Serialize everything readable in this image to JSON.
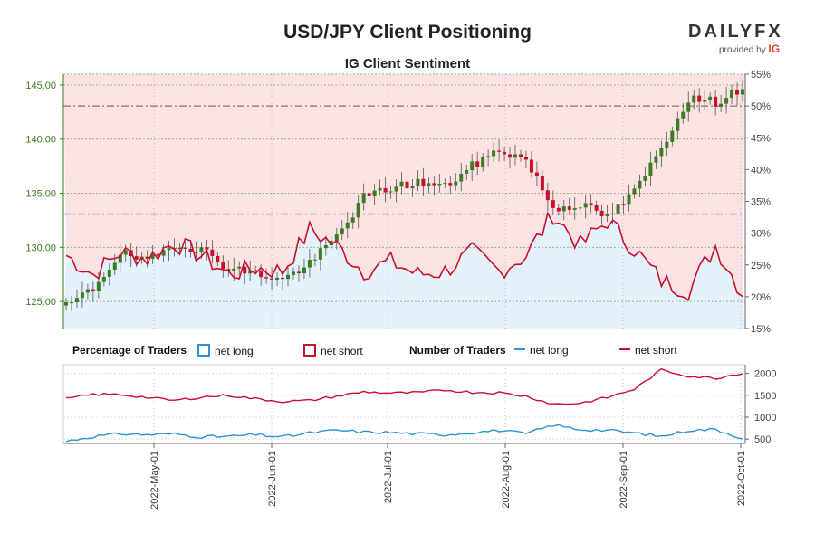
{
  "title": "USD/JPY Client Positioning",
  "subtitle": "IG Client Sentiment",
  "brand": {
    "name": "DAILYFX",
    "tagline": "provided by",
    "partner": "IG"
  },
  "colors": {
    "price_axis": "#3a7d1e",
    "long": "#2a93d5",
    "short": "#c8102e",
    "short_fill": "#fbe3e3",
    "long_fill": "#e3f1fb",
    "bull": "#3a7d1e",
    "bear": "#c8102e"
  },
  "legend": {
    "pct_title": "Percentage of Traders",
    "pct_long": "net long",
    "pct_short": "net short",
    "num_title": "Number of Traders",
    "num_long": "net long",
    "num_short": "net short"
  },
  "chart_data": [
    {
      "type": "candlestick+line",
      "name": "price-and-percentage",
      "x_labels": [
        "2022-May-01",
        "2022-Jun-01",
        "2022-Jul-01",
        "2022-Aug-01",
        "2022-Sep-01",
        "2022-Oct-01"
      ],
      "price_axis": {
        "label": "USD/JPY",
        "ylim": [
          122.5,
          146
        ],
        "ticks": [
          "125.00",
          "130.00",
          "135.00",
          "140.00",
          "145.00"
        ]
      },
      "pct_axis": {
        "ylim": [
          15,
          55
        ],
        "ticks": [
          "15%",
          "20%",
          "25%",
          "30%",
          "35%",
          "40%",
          "45%",
          "50%",
          "55%"
        ]
      },
      "reference_lines_pct": [
        50,
        33
      ],
      "price_path": [
        124.5,
        126.2,
        129.5,
        128.6,
        130.3,
        129.8,
        128.1,
        127.6,
        127.0,
        128.5,
        131.0,
        134.6,
        135.5,
        136.0,
        135.6,
        137.5,
        139.0,
        138.1,
        133.6,
        134.0,
        132.8,
        135.1,
        139.2,
        143.8,
        143.4,
        144.8
      ],
      "net_long_pct_path": [
        26.5,
        23.5,
        27.0,
        26.0,
        28.5,
        26.5,
        23.5,
        24.5,
        24.0,
        30.5,
        28.0,
        24.0,
        25.5,
        23.5,
        24.0,
        27.0,
        24.0,
        26.5,
        33.0,
        28.0,
        32.0,
        27.5,
        22.5,
        21.0,
        28.0,
        20.5
      ]
    },
    {
      "type": "line",
      "name": "number-of-traders",
      "y_axis": {
        "ylim": [
          400,
          2200
        ],
        "ticks": [
          "500",
          "1000",
          "1500",
          "2000"
        ]
      },
      "series": [
        {
          "name": "net long",
          "values": [
            450,
            560,
            620,
            600,
            620,
            550,
            560,
            600,
            550,
            640,
            700,
            660,
            650,
            620,
            600,
            650,
            700,
            620,
            820,
            720,
            700,
            640,
            560,
            700,
            720,
            520
          ]
        },
        {
          "name": "net short",
          "values": [
            1420,
            1520,
            1520,
            1450,
            1380,
            1460,
            1500,
            1420,
            1360,
            1380,
            1480,
            1580,
            1550,
            1560,
            1620,
            1570,
            1560,
            1480,
            1300,
            1320,
            1450,
            1640,
            2080,
            1940,
            1890,
            2010
          ]
        }
      ]
    }
  ]
}
